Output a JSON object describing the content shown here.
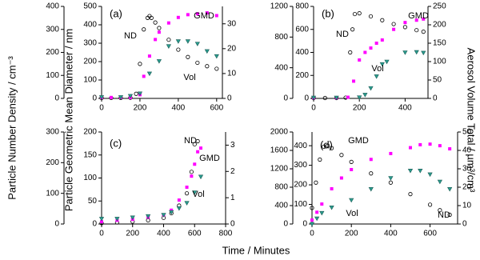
{
  "shared": {
    "xlabel": "Time / Minutes",
    "ylabel": "Particle Number Density / cm⁻³",
    "y2label": "Particle Geometric Mean Diameter / nm",
    "y3label": "Aerosol Volume Total / µm³/cm³"
  },
  "chart_data": [
    {
      "type": "scatter",
      "label": "(a)",
      "xlim": [
        0,
        630
      ],
      "xticks": [
        0,
        200,
        400,
        600
      ],
      "ylim": [
        0,
        400
      ],
      "yticks": [
        0,
        100,
        200,
        300,
        400
      ],
      "y2lim": [
        0,
        500
      ],
      "y2ticks": [
        0,
        100,
        200,
        300,
        400,
        500
      ],
      "y3lim": [
        0,
        37
      ],
      "y3ticks": [
        0,
        10,
        20,
        30
      ],
      "series": [
        {
          "name": "ND",
          "color": "#000000",
          "axis": "y",
          "x": [
            0,
            50,
            100,
            150,
            180,
            200,
            220,
            240,
            250,
            260,
            280,
            300,
            350,
            400,
            450,
            500,
            550,
            600
          ],
          "values": [
            2,
            2,
            2,
            3,
            20,
            150,
            300,
            350,
            358,
            350,
            330,
            306,
            255,
            212,
            180,
            155,
            140,
            129
          ]
        },
        {
          "name": "GMD",
          "color": "#ff00ff",
          "axis": "y2",
          "x": [
            0,
            50,
            100,
            150,
            200,
            220,
            250,
            280,
            300,
            350,
            400,
            450,
            500,
            550,
            600
          ],
          "values": [
            5,
            5,
            5,
            5,
            20,
            120,
            230,
            320,
            360,
            410,
            440,
            455,
            460,
            465,
            450
          ]
        },
        {
          "name": "Vol",
          "color": "#2a9d8f",
          "axis": "y3",
          "x": [
            0,
            100,
            150,
            200,
            250,
            300,
            350,
            400,
            450,
            500,
            550,
            600
          ],
          "values": [
            0.5,
            0.5,
            1,
            2,
            10,
            15,
            21,
            23,
            23,
            22,
            19,
            17
          ]
        }
      ]
    },
    {
      "type": "scatter",
      "label": "(b)",
      "xlim": [
        0,
        500
      ],
      "xticks": [
        0,
        200,
        400
      ],
      "ylim": [
        0,
        1200
      ],
      "yticks": [
        0,
        400,
        800,
        1200
      ],
      "y2lim": [
        0,
        800
      ],
      "y2ticks": [
        0,
        200,
        400,
        600,
        800
      ],
      "y3lim": [
        0,
        250
      ],
      "y3ticks": [
        0,
        50,
        100,
        150,
        200,
        250
      ],
      "series": [
        {
          "name": "ND",
          "color": "#000000",
          "axis": "y",
          "x": [
            0,
            50,
            100,
            140,
            160,
            170,
            180,
            200,
            250,
            300,
            350,
            400,
            450,
            480
          ],
          "values": [
            5,
            5,
            5,
            10,
            600,
            900,
            1100,
            1110,
            1070,
            1020,
            970,
            930,
            890,
            870
          ]
        },
        {
          "name": "GMD",
          "color": "#ff00ff",
          "axis": "y2",
          "x": [
            0,
            100,
            150,
            175,
            200,
            225,
            250,
            275,
            300,
            350,
            400,
            450,
            480
          ],
          "values": [
            5,
            5,
            10,
            150,
            334,
            400,
            438,
            480,
            508,
            600,
            660,
            680,
            690
          ]
        },
        {
          "name": "Vol",
          "color": "#2a9d8f",
          "axis": "y3",
          "x": [
            0,
            100,
            200,
            225,
            250,
            275,
            300,
            320,
            400,
            450,
            480
          ],
          "values": [
            2,
            2,
            3,
            10,
            28,
            60,
            93,
            100,
            125,
            126,
            124
          ]
        }
      ]
    },
    {
      "type": "scatter",
      "label": "(c)",
      "xlim": [
        0,
        800
      ],
      "xticks": [
        0,
        200,
        400,
        600,
        800
      ],
      "ylim": [
        0,
        300
      ],
      "yticks": [
        0,
        100,
        200,
        300
      ],
      "y2lim": [
        0,
        200
      ],
      "y2ticks": [
        0,
        50,
        100,
        150,
        200
      ],
      "y3lim": [
        0,
        3.5
      ],
      "y3ticks": [
        0,
        1,
        2,
        3
      ],
      "series": [
        {
          "name": "ND",
          "color": "#000000",
          "axis": "y",
          "x": [
            0,
            100,
            200,
            300,
            400,
            450,
            500,
            550,
            580,
            600,
            620
          ],
          "values": [
            3,
            5,
            8,
            12,
            20,
            35,
            60,
            100,
            170,
            260,
            270
          ]
        },
        {
          "name": "GMD",
          "color": "#ff00ff",
          "axis": "y2",
          "x": [
            0,
            100,
            200,
            300,
            400,
            450,
            500,
            550,
            580,
            600,
            620,
            640
          ],
          "values": [
            5,
            8,
            10,
            15,
            20,
            30,
            52,
            80,
            104,
            130,
            157,
            165
          ]
        },
        {
          "name": "Vol",
          "color": "#2a9d8f",
          "axis": "y3",
          "x": [
            0,
            100,
            200,
            300,
            400,
            450,
            500,
            550,
            600,
            640
          ],
          "values": [
            0.2,
            0.2,
            0.25,
            0.3,
            0.35,
            0.45,
            0.6,
            0.8,
            1.2,
            1.8
          ]
        }
      ]
    },
    {
      "type": "scatter",
      "label": "(d)",
      "xlim": [
        0,
        740
      ],
      "xticks": [
        0,
        200,
        400,
        600
      ],
      "ylim": [
        0,
        2000
      ],
      "yticks": [
        0,
        400,
        800,
        1200,
        1600,
        2000
      ],
      "y2lim": [
        0,
        470
      ],
      "y2ticks": [
        0,
        100,
        200,
        300,
        400
      ],
      "y3lim": [
        0,
        50
      ],
      "y3ticks": [
        0,
        10,
        20,
        30,
        40,
        50
      ],
      "series": [
        {
          "name": "ND",
          "color": "#000000",
          "axis": "y",
          "x": [
            0,
            20,
            40,
            60,
            80,
            100,
            150,
            200,
            300,
            400,
            500,
            600,
            650,
            700
          ],
          "values": [
            350,
            900,
            1400,
            1680,
            1700,
            1650,
            1500,
            1350,
            1100,
            900,
            650,
            420,
            300,
            200
          ]
        },
        {
          "name": "GMD",
          "color": "#ff00ff",
          "axis": "y2",
          "x": [
            0,
            25,
            50,
            100,
            150,
            200,
            300,
            400,
            500,
            550,
            600,
            650,
            700
          ],
          "values": [
            20,
            60,
            102,
            180,
            235,
            278,
            330,
            360,
            390,
            405,
            408,
            400,
            384
          ]
        },
        {
          "name": "Vol",
          "color": "#2a9d8f",
          "axis": "y3",
          "x": [
            0,
            25,
            50,
            100,
            200,
            300,
            400,
            500,
            550,
            600,
            650,
            700
          ],
          "values": [
            0,
            3,
            6,
            9,
            13,
            19,
            25,
            29,
            29,
            27,
            23,
            19
          ]
        }
      ]
    }
  ]
}
